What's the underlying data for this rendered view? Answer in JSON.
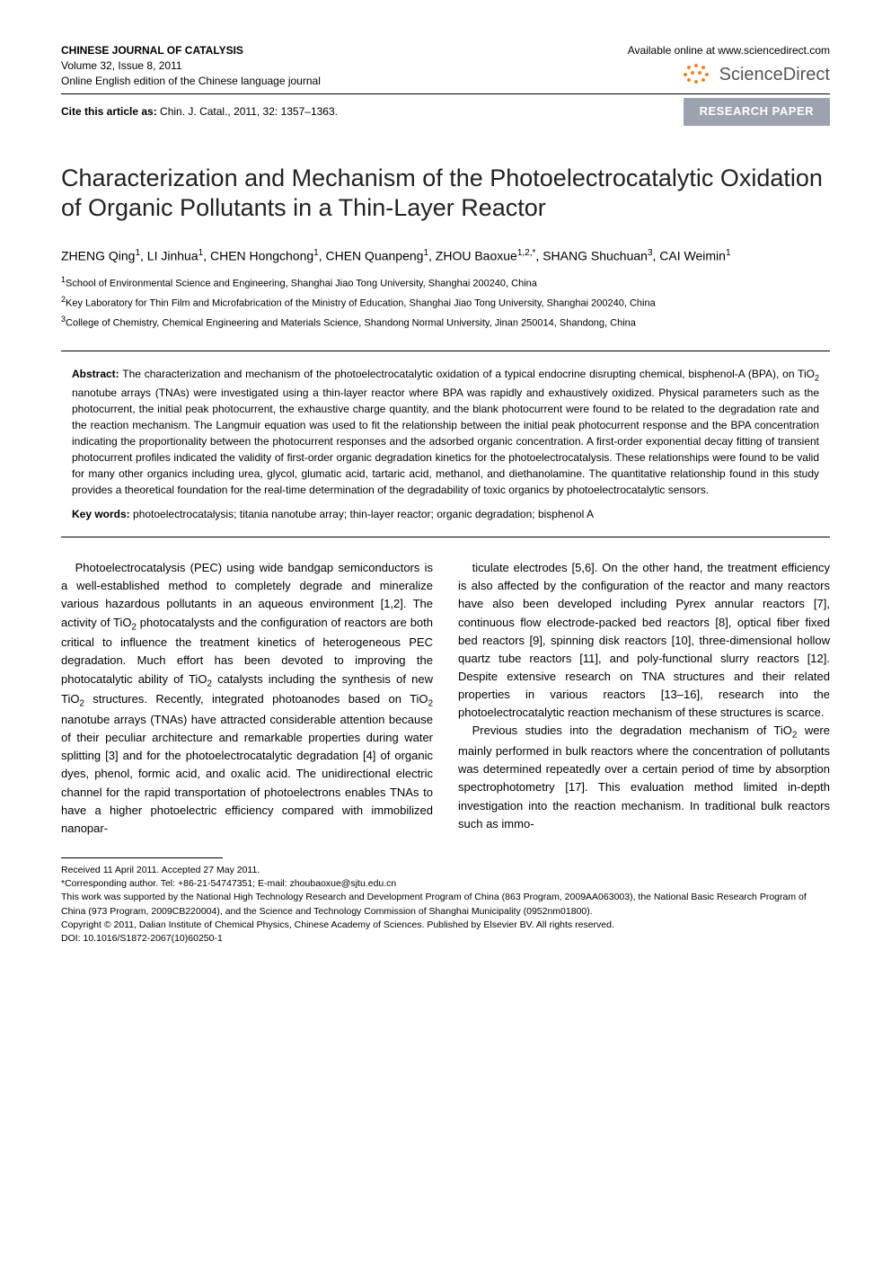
{
  "header": {
    "journal_name": "CHINESE JOURNAL OF CATALYSIS",
    "volume_issue": "Volume 32, Issue 8, 2011",
    "edition": "Online English edition of the Chinese language journal",
    "available": "Available online at www.sciencedirect.com",
    "sd_brand": "ScienceDirect",
    "cite_label": "Cite this article as:",
    "cite_text": " Chin. J. Catal., 2011, 32: 1357–1363.",
    "badge": "RESEARCH PAPER"
  },
  "title": "Characterization and Mechanism of the Photoelectrocatalytic Oxidation of Organic Pollutants in a Thin-Layer Reactor",
  "authors_html": "ZHENG Qing<sup>1</sup>, LI Jinhua<sup>1</sup>, CHEN Hongchong<sup>1</sup>, CHEN Quanpeng<sup>1</sup>, ZHOU Baoxue<sup>1,2,*</sup>, SHANG Shuchuan<sup>3</sup>, CAI Weimin<sup>1</sup>",
  "affiliations": [
    "<sup>1</sup>School of Environmental Science and Engineering, Shanghai Jiao Tong University, Shanghai 200240, China",
    "<sup>2</sup>Key Laboratory for Thin Film and Microfabrication of the Ministry of Education, Shanghai Jiao Tong University, Shanghai 200240, China",
    "<sup>3</sup>College of Chemistry, Chemical Engineering and Materials Science, Shandong Normal University, Jinan 250014, Shandong, China"
  ],
  "abstract_label": "Abstract:",
  "abstract": " The characterization and mechanism of the photoelectrocatalytic oxidation of a typical endocrine disrupting chemical, bisphenol-A (BPA), on TiO<sub>2</sub> nanotube arrays (TNAs) were investigated using a thin-layer reactor where BPA was rapidly and exhaustively oxidized. Physical parameters such as the photocurrent, the initial peak photocurrent, the exhaustive charge quantity, and the blank photocurrent were found to be related to the degradation rate and the reaction mechanism. The Langmuir equation was used to fit the relationship between the initial peak photocurrent response and the BPA concentration indicating the proportionality between the photocurrent responses and the adsorbed organic concentration. A first-order exponential decay fitting of transient photocurrent profiles indicated the validity of first-order organic degradation kinetics for the photoelectrocatalysis. These relationships were found to be valid for many other organics including urea, glycol, glumatic acid, tartaric acid, methanol, and diethanolamine. The quantitative relationship found in this study provides a theoretical foundation for the real-time determination of the degradability of toxic organics by photoelectrocatalytic sensors.",
  "keywords_label": "Key words:",
  "keywords": " photoelectrocatalysis; titania nanotube array; thin-layer reactor; organic degradation; bisphenol A",
  "body": {
    "col1": "Photoelectrocatalysis (PEC) using wide bandgap semiconductors is a well-established method to completely degrade and mineralize various hazardous pollutants in an aqueous environment [1,2]. The activity of TiO<sub>2</sub> photocatalysts and the configuration of reactors are both critical to influence the treatment kinetics of heterogeneous PEC degradation. Much effort has been devoted to improving the photocatalytic ability of TiO<sub>2</sub> catalysts including the synthesis of new TiO<sub>2</sub> structures. Recently, integrated photoanodes based on TiO<sub>2</sub> nanotube arrays (TNAs) have attracted considerable attention because of their peculiar architecture and remarkable properties during water splitting [3] and for the photoelectrocatalytic degradation [4] of organic dyes, phenol, formic acid, and oxalic acid. The unidirectional electric channel for the rapid transportation of photoelectrons enables TNAs to have a higher photoelectric efficiency compared with immobilized nanopar-",
    "col2_p1": "ticulate electrodes [5,6]. On the other hand, the treatment efficiency is also affected by the configuration of the reactor and many reactors have also been developed including Pyrex annular reactors [7], continuous flow electrode-packed bed reactors [8], optical fiber fixed bed reactors [9], spinning disk reactors [10], three-dimensional hollow quartz tube reactors [11], and poly-functional slurry reactors [12]. Despite extensive research on TNA structures and their related properties in various reactors [13–16], research into the photoelectrocatalytic reaction mechanism of these structures is scarce.",
    "col2_p2": "Previous studies into the degradation mechanism of TiO<sub>2</sub> were mainly performed in bulk reactors where the concentration of pollutants was determined repeatedly over a certain period of time by absorption spectrophotometry [17]. This evaluation method limited in-depth investigation into the reaction mechanism. In traditional bulk reactors such as immo-"
  },
  "footnotes": [
    "Received 11 April 2011. Accepted 27 May 2011.",
    "*Corresponding author. Tel: +86-21-54747351; E-mail: zhoubaoxue@sjtu.edu.cn",
    "This work was supported by the National High Technology Research and Development Program of China (863 Program, 2009AA063003), the National Basic Research Program of China (973 Program, 2009CB220004), and the Science and Technology Commission of Shanghai Municipality (0952nm01800).",
    "Copyright © 2011, Dalian Institute of Chemical Physics, Chinese Academy of Sciences. Published by Elsevier BV. All rights reserved.",
    "DOI: 10.1016/S1872-2067(10)60250-1"
  ],
  "colors": {
    "badge_bg": "#9ca3af",
    "badge_fg": "#ffffff",
    "sd_orange": "#f58220",
    "text": "#000000"
  }
}
